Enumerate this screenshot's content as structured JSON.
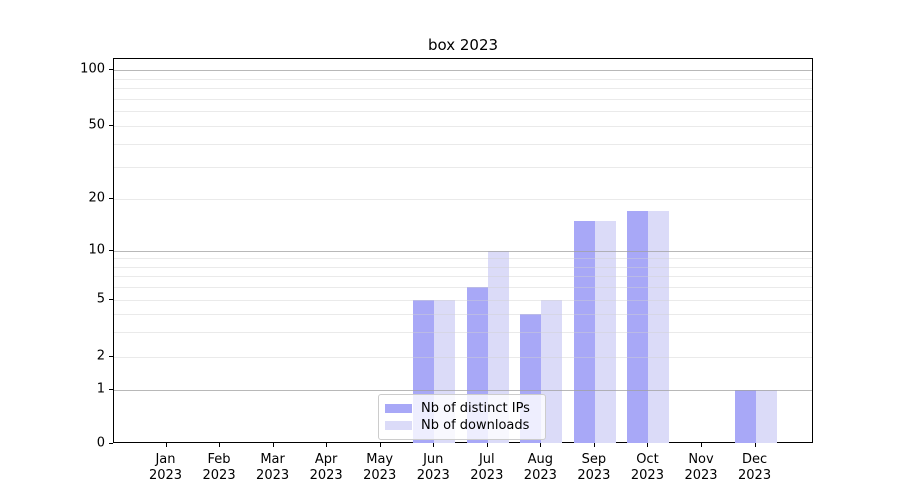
{
  "chart_data": {
    "type": "bar",
    "title": "box 2023",
    "yscale": "symlog",
    "ylim": [
      0,
      110
    ],
    "yticks": [
      0,
      1,
      2,
      5,
      10,
      20,
      50,
      100
    ],
    "grid": true,
    "categories": [
      "Jan",
      "Feb",
      "Mar",
      "Apr",
      "May",
      "Jun",
      "Jul",
      "Aug",
      "Sep",
      "Oct",
      "Nov",
      "Dec"
    ],
    "year_label": "2023",
    "series": [
      {
        "name": "Nb of distinct IPs",
        "color": "#a8a8f7",
        "values": [
          0,
          0,
          0,
          0,
          0,
          5,
          6,
          4,
          15,
          17,
          0,
          1
        ]
      },
      {
        "name": "Nb of downloads",
        "color": "#dbdbf8",
        "values": [
          0,
          0,
          0,
          0,
          0,
          5,
          10,
          5,
          15,
          17,
          0,
          1
        ]
      }
    ],
    "legend_position": "lower center"
  }
}
